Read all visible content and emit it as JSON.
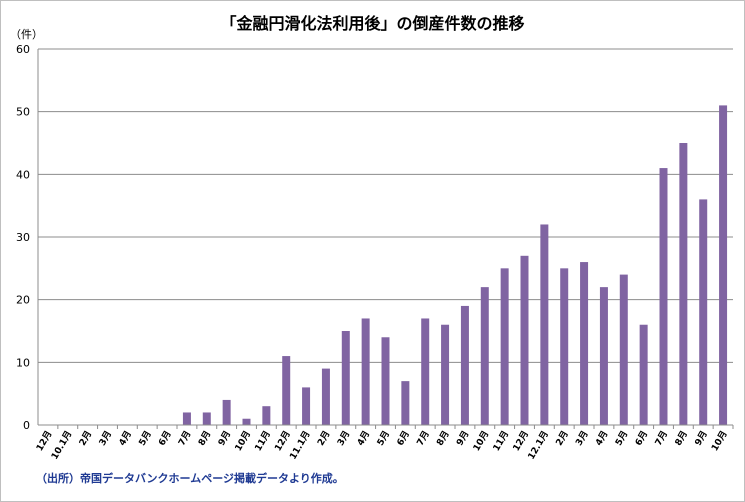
{
  "chart_data": {
    "type": "bar",
    "title": "「金融円滑化法利用後」の倒産件数の推移",
    "ylabel": "（件）",
    "ylim": [
      0,
      60
    ],
    "yticks": [
      0,
      10,
      20,
      30,
      40,
      50,
      60
    ],
    "grid": true,
    "legend": "none",
    "bar_color": "#8064a2",
    "categories": [
      "12月",
      "10.1月",
      "2月",
      "3月",
      "4月",
      "5月",
      "6月",
      "7月",
      "8月",
      "9月",
      "10月",
      "11月",
      "12月",
      "11.1月",
      "2月",
      "3月",
      "4月",
      "5月",
      "6月",
      "7月",
      "8月",
      "9月",
      "10月",
      "11月",
      "12月",
      "12.1月",
      "2月",
      "3月",
      "4月",
      "5月",
      "6月",
      "7月",
      "8月",
      "9月",
      "10月"
    ],
    "values": [
      0,
      0,
      0,
      0,
      0,
      0,
      0,
      2,
      2,
      4,
      1,
      3,
      11,
      6,
      9,
      15,
      17,
      14,
      7,
      17,
      16,
      19,
      22,
      25,
      27,
      32,
      25,
      26,
      22,
      24,
      16,
      41,
      45,
      36,
      51
    ]
  },
  "source_note": "（出所）帝国データバンクホームページ掲載データより作成。"
}
